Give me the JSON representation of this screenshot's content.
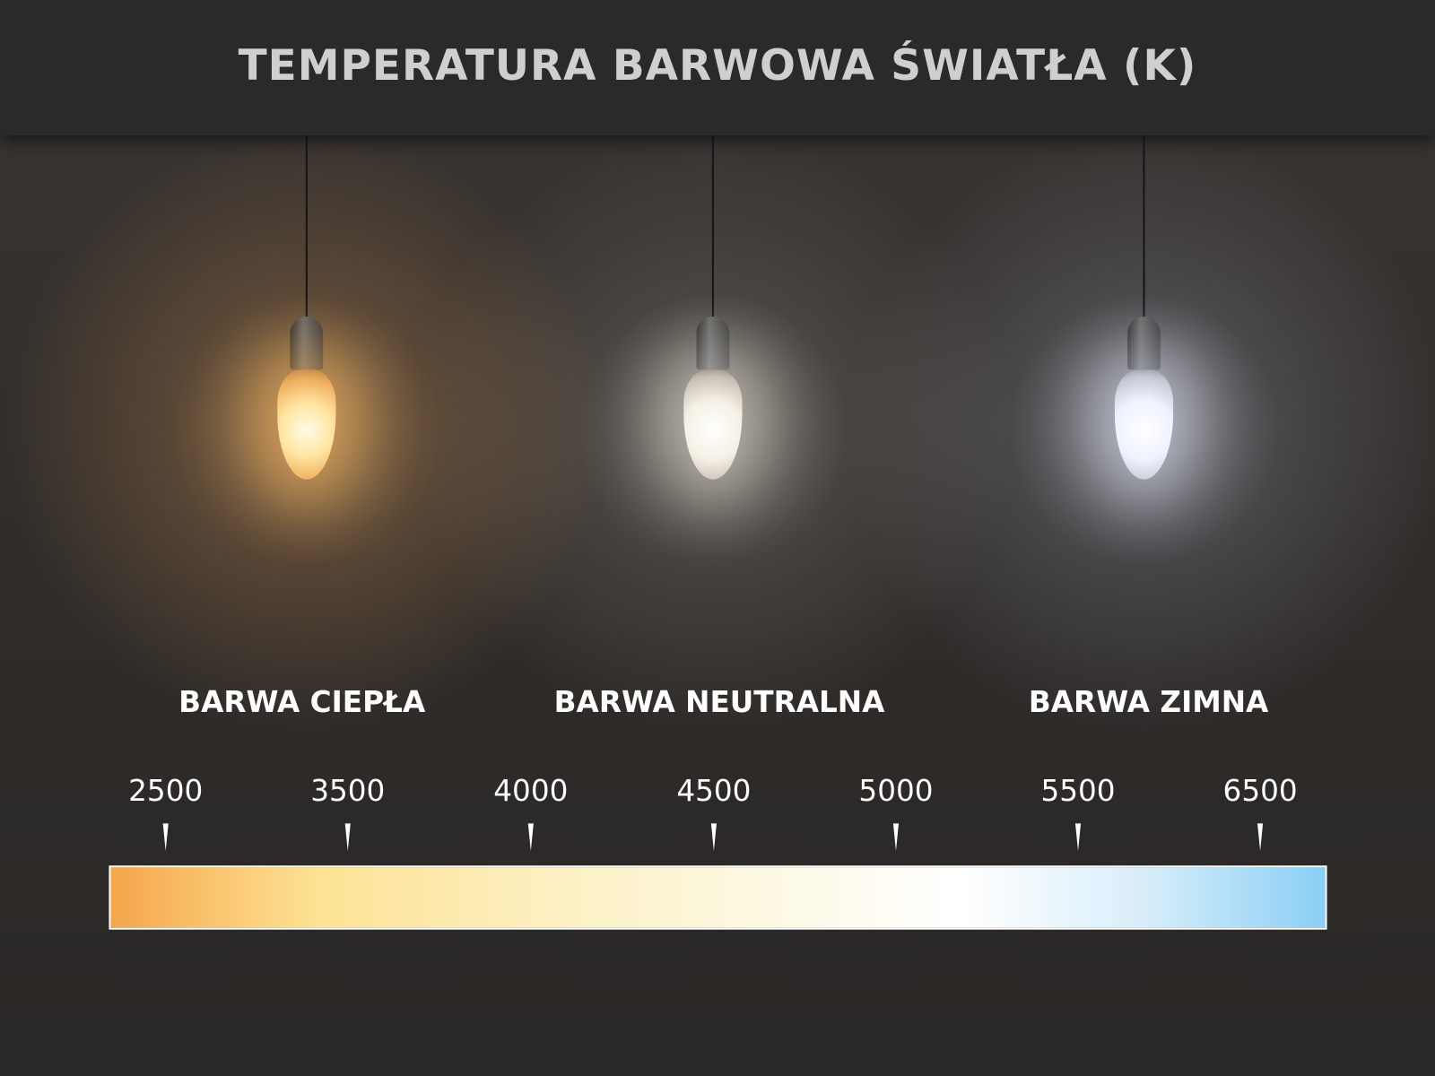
{
  "title": "TEMPERATURA BARWOWA ŚWIATŁA (K)",
  "zones": [
    {
      "label": "BARWA CIEPŁA",
      "color": "#ffc070"
    },
    {
      "label": "BARWA NEUTRALNA",
      "color": "#f5f0e4"
    },
    {
      "label": "BARWA ZIMNA",
      "color": "#e8eeff"
    }
  ],
  "scale": {
    "ticks": [
      "2500",
      "3500",
      "4000",
      "4500",
      "5000",
      "5500",
      "6500"
    ],
    "gradient_colors": [
      "#f5a54a",
      "#fde293",
      "#fcf6d8",
      "#ffffff",
      "#8acff5"
    ]
  }
}
